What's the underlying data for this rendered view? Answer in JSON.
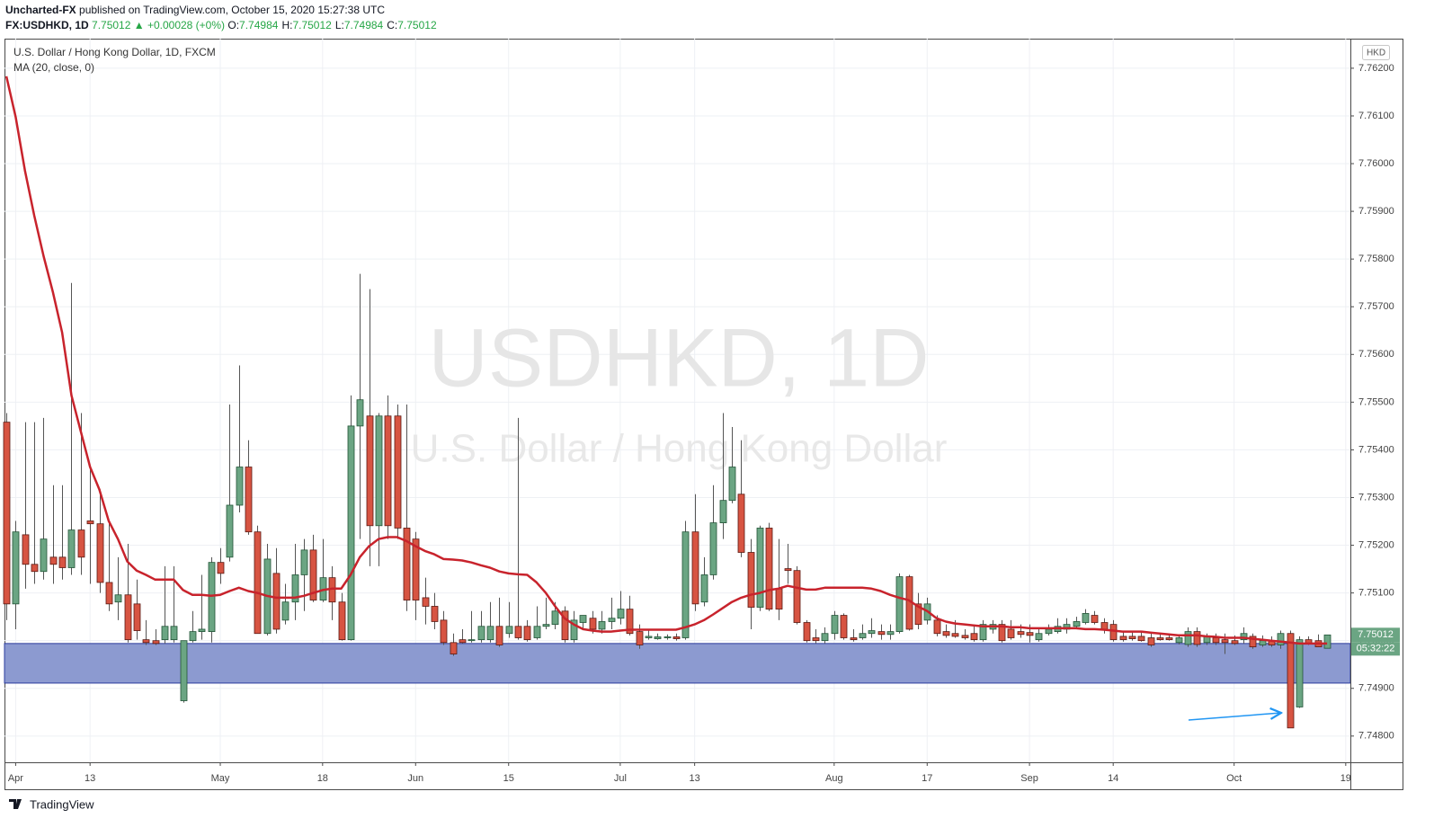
{
  "header": {
    "author": "Uncharted-FX",
    "published": "published on TradingView.com, October 15, 2020 15:27:38 UTC",
    "symbol": "FX:USDHKD, 1D",
    "last": 7.75012,
    "change": "▲ +0.00028 (+0%)",
    "ohlc": [
      {
        "label": "O:",
        "value": 7.74984
      },
      {
        "label": "H:",
        "value": 7.75012
      },
      {
        "label": "L:",
        "value": 7.74984
      },
      {
        "label": "C:",
        "value": 7.75012
      }
    ]
  },
  "chart_data": {
    "type": "candlestick",
    "title": "U.S. Dollar / Hong Kong Dollar, 1D, FXCM",
    "watermark": "USDHKD, 1D",
    "watermark_subtitle": "U.S. Dollar / Hong Kong Dollar",
    "currency": "HKD",
    "up_color": "#6ba583",
    "down_color": "#d75442",
    "open": [
      7.75458,
      7.75077,
      7.75222,
      7.7516,
      7.75145,
      7.75175,
      7.75175,
      7.75153,
      7.75232,
      7.75251,
      7.75245,
      7.75122,
      7.75081,
      7.75096,
      7.75077,
      7.75002,
      7.75,
      7.75002,
      7.75002,
      7.74874,
      7.75,
      7.75019,
      7.75019,
      7.75164,
      7.75175,
      7.75284,
      7.75364,
      7.75228,
      7.75015,
      7.75141,
      7.75043,
      7.75081,
      7.75138,
      7.7519,
      7.75085,
      7.75132,
      7.75081,
      7.75002,
      7.7545,
      7.75471,
      7.75241,
      7.75471,
      7.75471,
      7.75236,
      7.75213,
      7.7509,
      7.75072,
      7.75043,
      7.74996,
      7.75002,
      7.75,
      7.75002,
      7.75002,
      7.7503,
      7.75015,
      7.7503,
      7.7503,
      7.75006,
      7.7503,
      7.75034,
      7.75062,
      7.75002,
      7.75038,
      7.75047,
      7.75024,
      7.7504,
      7.75047,
      7.75066,
      7.75019,
      7.75006,
      7.75004,
      7.75006,
      7.75008,
      7.75006,
      7.75228,
      7.75081,
      7.75138,
      7.75247,
      7.75294,
      7.75307,
      7.75185,
      7.7507,
      7.75236,
      7.75109,
      7.75151,
      7.75147,
      7.75038,
      7.75006,
      7.75,
      7.75015,
      7.75053,
      7.75006,
      7.75006,
      7.75015,
      7.75019,
      7.75013,
      7.75019,
      7.75134,
      7.75077,
      7.75043,
      7.75043,
      7.75019,
      7.75015,
      7.75011,
      7.75015,
      7.75002,
      7.75024,
      7.75034,
      7.75024,
      7.75019,
      7.75017,
      7.75002,
      7.75015,
      7.75019,
      7.75024,
      7.7503,
      7.75038,
      7.75053,
      7.75038,
      7.75034,
      7.75009,
      7.75009,
      7.75009,
      7.75006,
      7.75006,
      7.75006,
      7.74996,
      7.74992,
      7.75019,
      7.74996,
      7.75006,
      7.75002,
      7.75,
      7.75002,
      7.75009,
      7.74991,
      7.75,
      7.74991,
      7.75015,
      7.74861,
      7.75002,
      7.75,
      7.74984
    ],
    "high": [
      7.75477,
      7.75251,
      7.75458,
      7.75458,
      7.75467,
      7.75326,
      7.75326,
      7.7575,
      7.75477,
      7.75364,
      7.75317,
      7.75251,
      7.75175,
      7.75203,
      7.75128,
      7.75043,
      7.75024,
      7.75156,
      7.75156,
      7.75,
      7.75062,
      7.75138,
      7.75175,
      7.75194,
      7.75495,
      7.75577,
      7.7542,
      7.75241,
      7.75203,
      7.75194,
      7.75119,
      7.75203,
      7.75213,
      7.75222,
      7.75213,
      7.75156,
      7.751,
      7.75514,
      7.75769,
      7.75737,
      7.75477,
      7.75514,
      7.75495,
      7.75495,
      7.75228,
      7.75132,
      7.751,
      7.75062,
      7.75015,
      7.75024,
      7.75062,
      7.75062,
      7.75081,
      7.7509,
      7.75081,
      7.75467,
      7.75043,
      7.75072,
      7.7509,
      7.75081,
      7.75072,
      7.75062,
      7.75053,
      7.75062,
      7.75062,
      7.7509,
      7.75104,
      7.75094,
      7.75034,
      7.75024,
      7.75015,
      7.75013,
      7.75015,
      7.75251,
      7.75307,
      7.75175,
      7.75326,
      7.75477,
      7.75448,
      7.7542,
      7.75213,
      7.75241,
      7.75247,
      7.75213,
      7.75203,
      7.75156,
      7.75043,
      7.75024,
      7.75028,
      7.75062,
      7.75057,
      7.75024,
      7.75034,
      7.75047,
      7.75034,
      7.75034,
      7.75141,
      7.75138,
      7.751,
      7.7509,
      7.75053,
      7.75034,
      7.75043,
      7.75024,
      7.75034,
      7.75043,
      7.75043,
      7.75043,
      7.75043,
      7.75034,
      7.75034,
      7.75024,
      7.75034,
      7.75047,
      7.75047,
      7.7505,
      7.75066,
      7.75062,
      7.75047,
      7.75043,
      7.75019,
      7.75019,
      7.75019,
      7.75015,
      7.75015,
      7.75015,
      7.75011,
      7.75028,
      7.75028,
      7.75015,
      7.75015,
      7.75015,
      7.75011,
      7.75028,
      7.75015,
      7.75011,
      7.75009,
      7.75021,
      7.75021,
      7.75009,
      7.75009,
      7.75013,
      7.75012
    ],
    "low": [
      7.75043,
      7.75024,
      7.75109,
      7.75119,
      7.75128,
      7.75119,
      7.75128,
      7.75138,
      7.75138,
      7.75119,
      7.751,
      7.75062,
      7.75043,
      7.74996,
      7.75002,
      7.74991,
      7.74991,
      7.74994,
      7.74996,
      7.7487,
      7.74996,
      7.75002,
      7.74996,
      7.75119,
      7.75166,
      7.75269,
      7.75222,
      7.75015,
      7.75011,
      7.75015,
      7.75034,
      7.75043,
      7.75062,
      7.75081,
      7.75081,
      7.75043,
      7.75,
      7.75,
      7.75213,
      7.75156,
      7.75156,
      7.75213,
      7.75213,
      7.75062,
      7.75043,
      7.75034,
      7.75024,
      7.74991,
      7.74968,
      7.74994,
      7.74996,
      7.74996,
      7.74996,
      7.74987,
      7.75006,
      7.75002,
      7.74998,
      7.75002,
      7.75024,
      7.75024,
      7.74996,
      7.74996,
      7.75024,
      7.75015,
      7.75015,
      7.75024,
      7.75034,
      7.75011,
      7.74983,
      7.75002,
      7.75002,
      7.75002,
      7.75,
      7.75002,
      7.75062,
      7.75072,
      7.75128,
      7.75213,
      7.75288,
      7.75175,
      7.75024,
      7.75062,
      7.75062,
      7.75043,
      7.75119,
      7.75034,
      7.74996,
      7.74994,
      7.74994,
      7.75002,
      7.75002,
      7.74998,
      7.75002,
      7.75006,
      7.75002,
      7.75002,
      7.75015,
      7.75021,
      7.75024,
      7.75034,
      7.75009,
      7.75006,
      7.75006,
      7.75002,
      7.74998,
      7.74998,
      7.75015,
      7.74996,
      7.75002,
      7.75006,
      7.74996,
      7.74998,
      7.75011,
      7.75015,
      7.75015,
      7.75024,
      7.75034,
      7.75034,
      7.75015,
      7.74998,
      7.74998,
      7.75,
      7.74998,
      7.74987,
      7.75,
      7.75,
      7.74992,
      7.74987,
      7.74987,
      7.74991,
      7.74991,
      7.74972,
      7.74991,
      7.74994,
      7.74983,
      7.74987,
      7.74987,
      7.74983,
      7.74817,
      7.74859,
      7.74991,
      7.74987,
      7.74984
    ],
    "close": [
      7.75077,
      7.75228,
      7.7516,
      7.75145,
      7.75213,
      7.7516,
      7.75153,
      7.75232,
      7.75175,
      7.75245,
      7.75122,
      7.75077,
      7.75096,
      7.75002,
      7.75021,
      7.74996,
      7.74994,
      7.7503,
      7.7503,
      7.75,
      7.75019,
      7.75024,
      7.75164,
      7.75141,
      7.75284,
      7.75364,
      7.75228,
      7.75015,
      7.75171,
      7.75024,
      7.75081,
      7.75138,
      7.7519,
      7.75085,
      7.75132,
      7.75081,
      7.75002,
      7.7545,
      7.75505,
      7.75241,
      7.75471,
      7.75241,
      7.75236,
      7.75085,
      7.75085,
      7.75072,
      7.7504,
      7.74996,
      7.74972,
      7.74996,
      7.75002,
      7.7503,
      7.7503,
      7.74991,
      7.7503,
      7.75006,
      7.75002,
      7.7503,
      7.75034,
      7.75062,
      7.75002,
      7.75043,
      7.75053,
      7.75024,
      7.7504,
      7.75047,
      7.75066,
      7.75015,
      7.74991,
      7.75009,
      7.75008,
      7.75008,
      7.75004,
      7.75228,
      7.75077,
      7.75138,
      7.75247,
      7.75294,
      7.75364,
      7.75185,
      7.7507,
      7.75236,
      7.75066,
      7.75066,
      7.75147,
      7.75038,
      7.75,
      7.75,
      7.75015,
      7.75053,
      7.75006,
      7.75002,
      7.75015,
      7.75021,
      7.75013,
      7.75019,
      7.75134,
      7.75024,
      7.75034,
      7.75077,
      7.75015,
      7.75011,
      7.75009,
      7.75006,
      7.75002,
      7.75034,
      7.75034,
      7.75,
      7.75006,
      7.75013,
      7.75011,
      7.75015,
      7.75024,
      7.7503,
      7.75034,
      7.7504,
      7.75057,
      7.75038,
      7.75024,
      7.75002,
      7.75002,
      7.75004,
      7.75,
      7.74991,
      7.75002,
      7.75002,
      7.75006,
      7.75019,
      7.74992,
      7.75009,
      7.74996,
      7.74996,
      7.74994,
      7.75015,
      7.74987,
      7.75,
      7.74991,
      7.75015,
      7.74817,
      7.75002,
      7.74994,
      7.74987,
      7.75012
    ],
    "ma": {
      "name": "MA (20, close, 0)",
      "color": "#c8232c",
      "values": [
        7.76183,
        7.76098,
        7.75985,
        7.75891,
        7.75806,
        7.75731,
        7.75646,
        7.75514,
        7.75439,
        7.75364,
        7.75317,
        7.75251,
        7.75213,
        7.75166,
        7.75147,
        7.75138,
        7.75128,
        7.75128,
        7.75128,
        7.75106,
        7.75096,
        7.75096,
        7.75094,
        7.75096,
        7.75104,
        7.75111,
        7.75104,
        7.751,
        7.75094,
        7.7509,
        7.7509,
        7.7509,
        7.75094,
        7.751,
        7.75106,
        7.75109,
        7.75109,
        7.75138,
        7.75175,
        7.75198,
        7.75213,
        7.75217,
        7.75217,
        7.75209,
        7.75198,
        7.75188,
        7.75181,
        7.75171,
        7.7517,
        7.75168,
        7.75164,
        7.75158,
        7.75153,
        7.75145,
        7.75141,
        7.75139,
        7.75138,
        7.75122,
        7.751,
        7.75072,
        7.75047,
        7.75034,
        7.75024,
        7.75021,
        7.75019,
        7.75019,
        7.75021,
        7.75023,
        7.75023,
        7.75023,
        7.75023,
        7.75023,
        7.75023,
        7.75028,
        7.75034,
        7.75043,
        7.75055,
        7.75068,
        7.75081,
        7.7509,
        7.75096,
        7.751,
        7.75106,
        7.75109,
        7.75115,
        7.75111,
        7.75107,
        7.75107,
        7.75111,
        7.75111,
        7.75111,
        7.75111,
        7.75111,
        7.75109,
        7.75104,
        7.75096,
        7.7509,
        7.75085,
        7.75072,
        7.75062,
        7.75047,
        7.7504,
        7.75036,
        7.75034,
        7.75032,
        7.7503,
        7.7503,
        7.7503,
        7.75028,
        7.75028,
        7.75026,
        7.75026,
        7.75026,
        7.75026,
        7.75026,
        7.75026,
        7.75024,
        7.75024,
        7.75023,
        7.75021,
        7.75019,
        7.75019,
        7.75019,
        7.75017,
        7.75015,
        7.75013,
        7.75011,
        7.75011,
        7.75011,
        7.75009,
        7.75008,
        7.75006,
        7.75006,
        7.75006,
        7.75004,
        7.75002,
        7.75,
        7.74998,
        7.74996,
        7.74994,
        7.74994,
        7.74994,
        7.74994
      ]
    },
    "zone": {
      "from": 7.74911,
      "to": 7.74994,
      "color": "#8c9ad0"
    },
    "last_price": 7.75012,
    "countdown": "05:32:22",
    "xlim": [
      -0.2,
      144.5
    ],
    "xticks": [
      {
        "value": 1,
        "label": "Apr"
      },
      {
        "value": 9,
        "label": "13"
      },
      {
        "value": 23,
        "label": "May"
      },
      {
        "value": 34,
        "label": "18"
      },
      {
        "value": 44,
        "label": "Jun"
      },
      {
        "value": 54,
        "label": "15"
      },
      {
        "value": 66,
        "label": "Jul"
      },
      {
        "value": 74,
        "label": "13"
      },
      {
        "value": 89,
        "label": "Aug"
      },
      {
        "value": 99,
        "label": "17"
      },
      {
        "value": 110,
        "label": "Sep"
      },
      {
        "value": 119,
        "label": "14"
      },
      {
        "value": 132,
        "label": "Oct"
      },
      {
        "value": 144,
        "label": "19"
      }
    ],
    "ylim": [
      7.74745,
      7.76262
    ],
    "yticks": [
      {
        "value": 7.762,
        "label": "7.76200"
      },
      {
        "value": 7.761,
        "label": "7.76100"
      },
      {
        "value": 7.76,
        "label": "7.76000"
      },
      {
        "value": 7.759,
        "label": "7.75900"
      },
      {
        "value": 7.758,
        "label": "7.75800"
      },
      {
        "value": 7.757,
        "label": "7.75700"
      },
      {
        "value": 7.756,
        "label": "7.75600"
      },
      {
        "value": 7.755,
        "label": "7.75500"
      },
      {
        "value": 7.754,
        "label": "7.75400"
      },
      {
        "value": 7.753,
        "label": "7.75300"
      },
      {
        "value": 7.752,
        "label": "7.75200"
      },
      {
        "value": 7.751,
        "label": "7.75100"
      },
      {
        "value": 7.75,
        "label": "7.75000"
      },
      {
        "value": 7.749,
        "label": "7.74900"
      },
      {
        "value": 7.748,
        "label": "7.74800"
      }
    ],
    "grid": true
  },
  "footer": {
    "brand": "TradingView"
  }
}
